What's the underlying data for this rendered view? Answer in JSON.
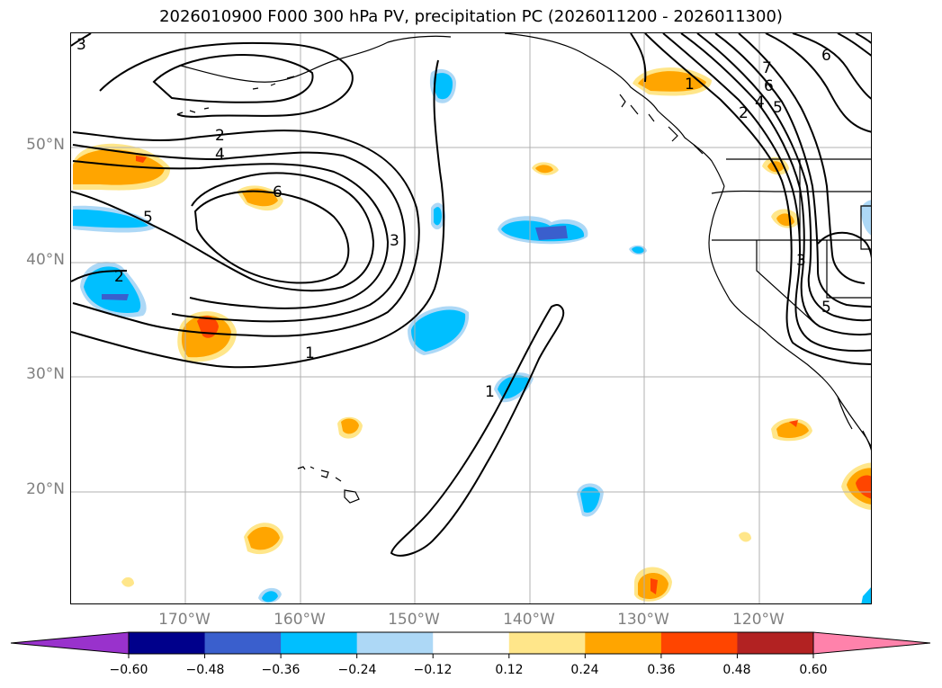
{
  "title": "2026010900 F000 300 hPa PV, precipitation PC (2026011200 - 2026011300)",
  "lat_labels": [
    "50°N",
    "40°N",
    "30°N",
    "20°N"
  ],
  "lon_labels": [
    "170°W",
    "160°W",
    "150°W",
    "140°W",
    "130°W",
    "120°W"
  ],
  "contour_labels": {
    "pv1_main": "1",
    "pv1_tongue": "1",
    "pv1_na": "1",
    "pv2_west": "2",
    "pv2_north": "2",
    "pv2_na": "2",
    "pv3_corner": "3",
    "pv3_center": "3",
    "pv3_na": "3",
    "pv4": "4",
    "pv4_na": "4",
    "pv5_west": "5",
    "pv5_na": "5",
    "pv5_us": "5",
    "pv6": "6",
    "pv6_na": "6",
    "pv6_ne": "6",
    "pv7_na": "7"
  },
  "colorbar": {
    "ticks": [
      "−0.60",
      "−0.48",
      "−0.36",
      "−0.24",
      "−0.12",
      "0.12",
      "0.24",
      "0.36",
      "0.48",
      "0.60"
    ],
    "colors": [
      "#9932cc",
      "#00008b",
      "#3a5fcd",
      "#00bfff",
      "#add8f6",
      "#ffffff",
      "#ffe68a",
      "#ffa500",
      "#ff4500",
      "#b22222",
      "#ff82ab"
    ]
  },
  "colors": {
    "gridline": "#b0b0b0",
    "contour": "#000000",
    "tick_label": "#808080"
  }
}
